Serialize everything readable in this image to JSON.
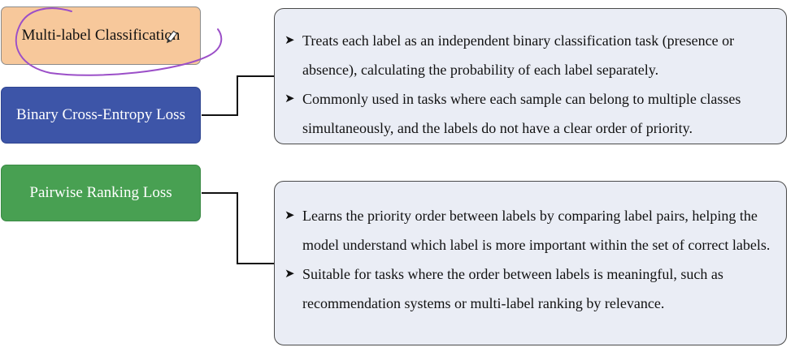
{
  "title_box": {
    "label": "Multi-label Classification",
    "color": "#f7c89b"
  },
  "methods": [
    {
      "label": "Binary Cross-Entropy Loss",
      "color": "#3d55a8",
      "bullets": [
        "Treats each label as an independent binary classification task (presence or absence), calculating the probability of each label separately.",
        "Commonly used in tasks where each sample can belong to multiple classes simultaneously, and the labels do not have a clear order of priority."
      ]
    },
    {
      "label": "Pairwise Ranking Loss",
      "color": "#48a052",
      "bullets": [
        "Learns the priority order between labels by comparing label pairs, helping the model understand which label is more important within the set of correct labels.",
        "Suitable for tasks where the order between labels is meaningful, such as recommendation systems or multi-label ranking by relevance."
      ]
    }
  ],
  "bullet_icon": "arrow-bullet-icon",
  "panel_color": "#eaedf5",
  "annotation": {
    "color": "#9b4fc8",
    "icon": "pen-cursor-icon"
  }
}
